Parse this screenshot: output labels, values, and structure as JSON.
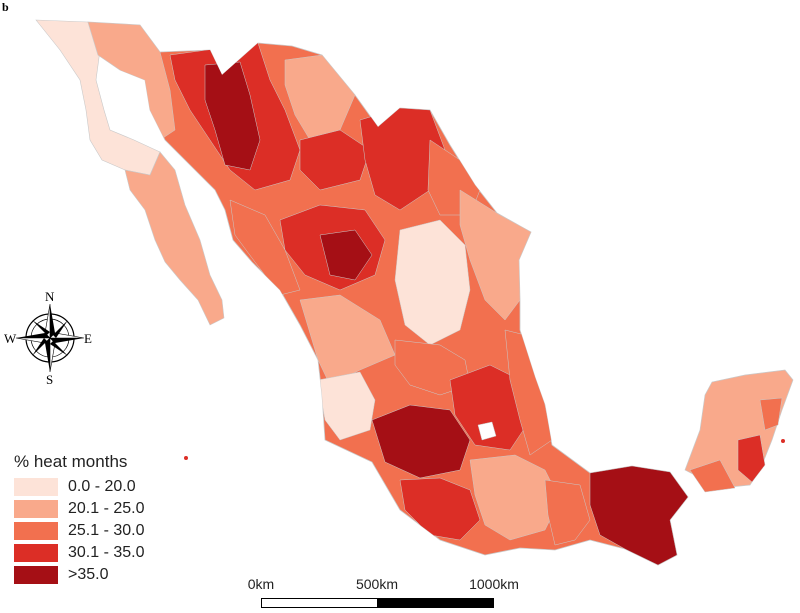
{
  "panel_label": "b",
  "legend": {
    "title": "% heat months",
    "classes": [
      {
        "label": "0.0 - 20.0",
        "color": "#fde3d8"
      },
      {
        "label": "20.1 - 25.0",
        "color": "#f9a98b"
      },
      {
        "label": "25.1 - 30.0",
        "color": "#f2704f"
      },
      {
        "label": "30.1 - 35.0",
        "color": "#dc2e26"
      },
      {
        "label": ">35.0",
        "color": "#a50f15"
      }
    ]
  },
  "compass": {
    "north": "N",
    "south": "S",
    "east": "E",
    "west": "W"
  },
  "scale_bar": {
    "labels": [
      "0km",
      "500km",
      "1000km"
    ]
  },
  "colors": {
    "boundary": "#c9c9c9",
    "background": "#ffffff"
  }
}
